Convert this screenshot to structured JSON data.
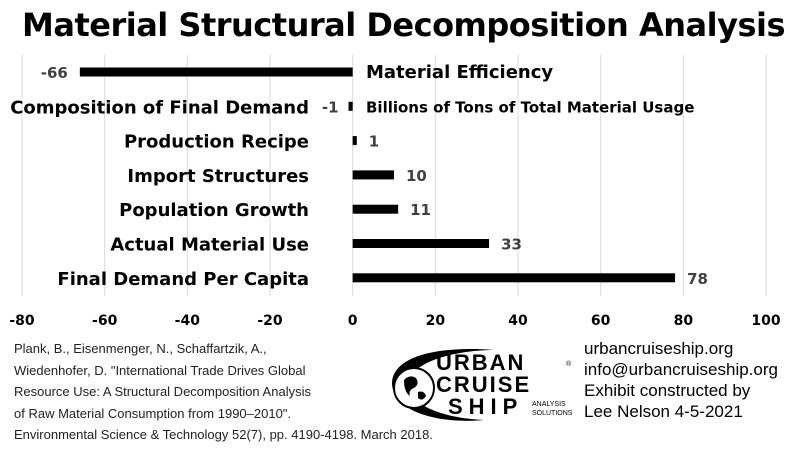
{
  "chart_data": {
    "type": "bar",
    "orientation": "horizontal",
    "title": "Material Structural Decomposition Analysis",
    "categories": [
      "Material Efficiency",
      "Composition of Final Demand",
      "Production Recipe",
      "Import Structures",
      "Population Growth",
      "Actual Material Use",
      "Final Demand Per Capita"
    ],
    "values": [
      -66,
      -1,
      1,
      10,
      11,
      33,
      78
    ],
    "value_labels": [
      "-66",
      "-1",
      "1",
      "10",
      "11",
      "33",
      "78"
    ],
    "xlim": [
      -80,
      100
    ],
    "xticks": [
      -80,
      -60,
      -40,
      -20,
      0,
      20,
      40,
      60,
      80,
      100
    ],
    "tick_labels": [
      "-80",
      "-60",
      "-40",
      "-20",
      "0",
      "20",
      "40",
      "60",
      "80",
      "100"
    ],
    "grid": true,
    "bar_color": "#000000",
    "grid_color": "#d9d9d9",
    "units_note": "Billions of Tons of Total Material Usage"
  },
  "citation": {
    "lines": [
      "Plank, B., Eisenmenger, N., Schaffartzik, A.,",
      "Wiedenhofer, D. \"International Trade Drives Global",
      "Resource Use: A Structural Decomposition Analysis",
      "of Raw Material Consumption from 1990–2010\".",
      "Environmental Science & Technology 52(7), pp. 4190-4198. March 2018."
    ]
  },
  "logo": {
    "line1": "URBAN",
    "line2": "CRUISE",
    "line3": "SHIP",
    "tag1": "ANALYSIS",
    "tag2": "SOLUTIONS",
    "registered": "®"
  },
  "contact": {
    "lines": [
      "urbancruiseship.org",
      "info@urbancruiseship.org",
      "Exhibit constructed by",
      "Lee Nelson 4-5-2021"
    ]
  }
}
